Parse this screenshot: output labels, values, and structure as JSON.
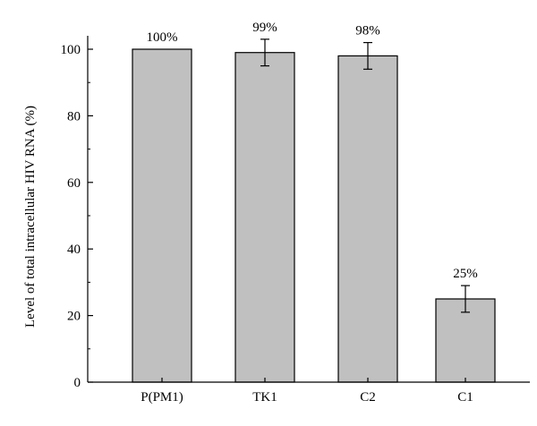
{
  "chart_data": {
    "type": "bar",
    "title": "",
    "xlabel": "",
    "ylabel": "Level of total intracellular HIV RNA (%)",
    "ylim": [
      0,
      100
    ],
    "yticks": [
      0,
      20,
      40,
      60,
      80,
      100
    ],
    "categories": [
      "P(PM1)",
      "TK1",
      "C2",
      "C1"
    ],
    "values": [
      100,
      99,
      98,
      25
    ],
    "error_bars": [
      0,
      4,
      4,
      4
    ],
    "data_labels": [
      "100%",
      "99%",
      "98%",
      "25%"
    ],
    "grid": false,
    "legend": "none",
    "colors": {
      "bar_fill": "#c0c0c0",
      "bar_stroke": "#000000",
      "axis": "#000000"
    }
  }
}
